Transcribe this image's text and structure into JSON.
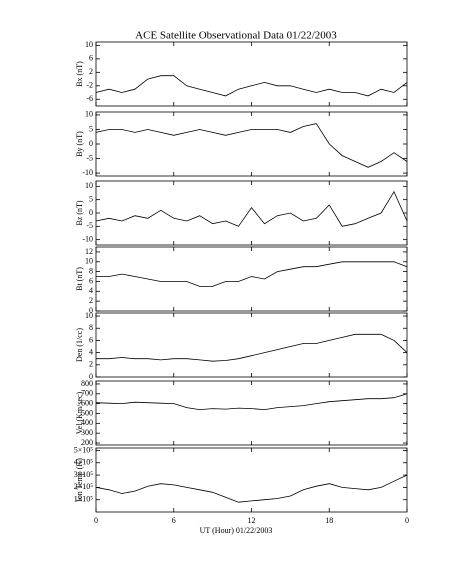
{
  "chart_data": {
    "type": "line",
    "title": "ACE Satellite Observational Data   01/22/2003",
    "xlabel": "UT (Hour)   01/22/2003",
    "x": [
      0,
      1,
      2,
      3,
      4,
      5,
      6,
      7,
      8,
      9,
      10,
      11,
      12,
      13,
      14,
      15,
      16,
      17,
      18,
      19,
      20,
      21,
      22,
      23,
      24
    ],
    "xlim": [
      0,
      24
    ],
    "xticks": [
      0,
      6,
      12,
      18,
      {
        "value": 24,
        "label": "0"
      }
    ],
    "color": "#000000",
    "panels": [
      {
        "ylabel": "Bx (nT)",
        "ylim": [
          -8,
          11
        ],
        "yticks": [
          10,
          6,
          2,
          -2,
          -6
        ],
        "values": [
          -4,
          -3,
          -4,
          -3,
          0,
          1,
          1,
          -2,
          -3,
          -4,
          -5,
          -3,
          -2,
          -1,
          -2,
          -2,
          -3,
          -4,
          -3,
          -4,
          -4,
          -5,
          -3,
          -4,
          -1
        ]
      },
      {
        "ylabel": "By (nT)",
        "ylim": [
          -11,
          11
        ],
        "yticks": [
          10,
          5,
          0,
          -5,
          -10
        ],
        "values": [
          4,
          5,
          5,
          4,
          5,
          4,
          3,
          4,
          5,
          4,
          3,
          4,
          5,
          5,
          5,
          4,
          6,
          7,
          0,
          -4,
          -6,
          -8,
          -6,
          -3,
          -6
        ]
      },
      {
        "ylabel": "Bz (nT)",
        "ylim": [
          -12,
          12
        ],
        "yticks": [
          10,
          5,
          0,
          -5,
          -10
        ],
        "values": [
          -3,
          -2,
          -3,
          -1,
          -2,
          1,
          -2,
          -3,
          -1,
          -4,
          -3,
          -5,
          2,
          -4,
          -1,
          0,
          -3,
          -2,
          3,
          -5,
          -4,
          -2,
          0,
          8,
          -3
        ]
      },
      {
        "ylabel": "Bt (nT)",
        "ylim": [
          0,
          13
        ],
        "yticks": [
          12,
          10,
          8,
          6,
          4,
          2,
          0
        ],
        "values": [
          7,
          7,
          7.5,
          7,
          6.5,
          6,
          6,
          6,
          5,
          5,
          6,
          6,
          7,
          6.5,
          8,
          8.5,
          9,
          9,
          9.5,
          10,
          10,
          10,
          10,
          10,
          9
        ]
      },
      {
        "ylabel": "Den (1/cc)",
        "ylim": [
          0,
          10.5
        ],
        "yticks": [
          10,
          8,
          6,
          4,
          2,
          0
        ],
        "values": [
          3,
          3,
          3.2,
          3,
          3,
          2.8,
          3,
          3,
          2.8,
          2.6,
          2.7,
          3,
          3.5,
          4,
          4.5,
          5,
          5.5,
          5.5,
          6,
          6.5,
          7,
          7,
          7,
          6,
          4
        ]
      },
      {
        "ylabel": "Vel (Km/sec)",
        "ylim": [
          180,
          830
        ],
        "yticks": [
          800,
          700,
          600,
          500,
          400,
          300,
          200
        ],
        "values": [
          610,
          605,
          600,
          615,
          610,
          605,
          600,
          560,
          540,
          550,
          545,
          555,
          550,
          540,
          560,
          570,
          580,
          600,
          620,
          630,
          640,
          650,
          650,
          660,
          700
        ]
      },
      {
        "ylabel": "Ion Temp (K)",
        "ylim": [
          0,
          520000
        ],
        "yticks": [
          {
            "value": 500000,
            "label": "5×10⁵"
          },
          {
            "value": 400000,
            "label": "4×10⁵"
          },
          {
            "value": 300000,
            "label": "3×10⁵"
          },
          {
            "value": 200000,
            "label": "2×10⁵"
          },
          {
            "value": 100000,
            "label": "1×10⁵"
          }
        ],
        "values": [
          200000,
          180000,
          150000,
          170000,
          210000,
          230000,
          220000,
          200000,
          180000,
          160000,
          120000,
          80000,
          90000,
          100000,
          110000,
          130000,
          180000,
          210000,
          230000,
          200000,
          190000,
          180000,
          200000,
          250000,
          300000
        ]
      }
    ]
  }
}
